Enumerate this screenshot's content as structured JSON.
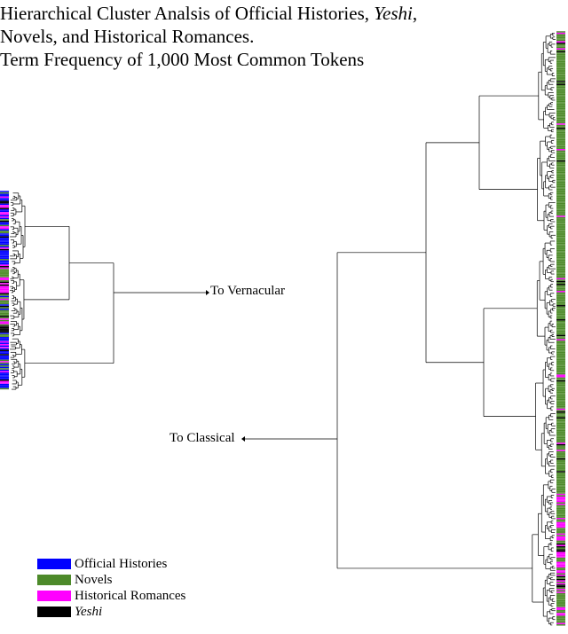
{
  "title": {
    "line1_prefix": "Hierarchical Cluster Analsis of Official Histories, ",
    "line1_italic": "Yeshi",
    "line1_suffix": ",",
    "line2": "Novels, and Historical Romances.",
    "line3": "Term Frequency of 1,000 Most Common Tokens"
  },
  "annotations": {
    "vernacular": "To Vernacular",
    "classical": "To Classical"
  },
  "legend": [
    {
      "label": "Official Histories",
      "color": "#0000ff",
      "italic": false
    },
    {
      "label": "Novels",
      "color": "#4d8a2a",
      "italic": false
    },
    {
      "label": "Historical Romances",
      "color": "#ff00ff",
      "italic": false
    },
    {
      "label": "Yeshi",
      "color": "#000000",
      "italic": true
    }
  ]
}
